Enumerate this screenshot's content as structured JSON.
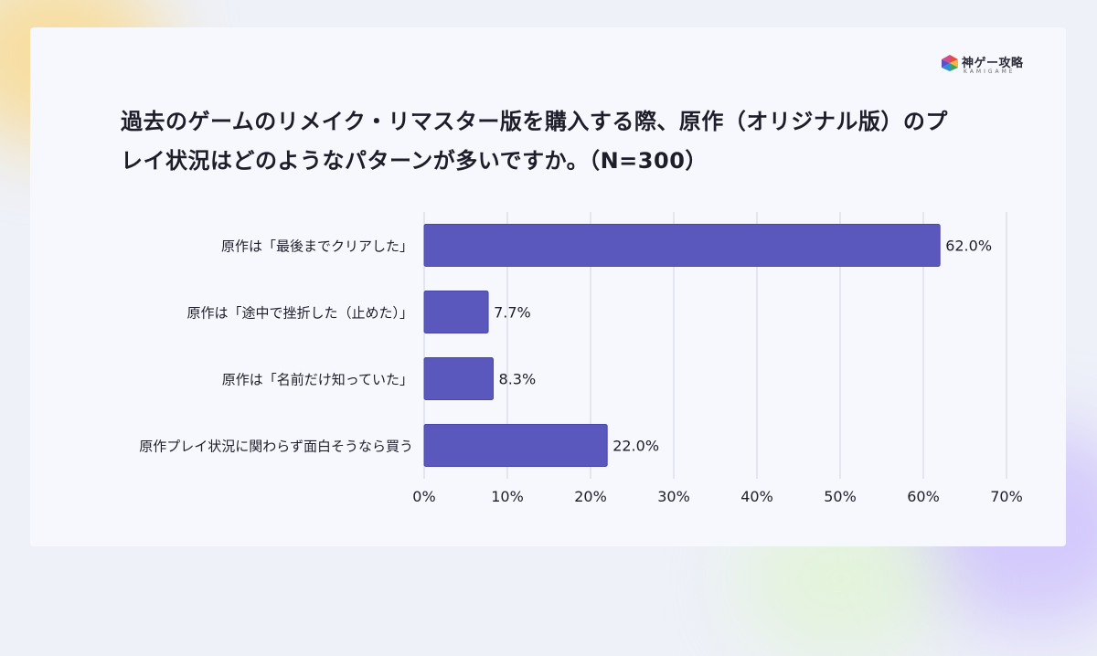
{
  "title": "過去のゲームのリメイク・リマスター版を購入する際、原作（オリジナル版）のプレイ状況はどのようなパターンが多いですか。（N=300）",
  "logo": {
    "name_jp": "神ゲー攻略",
    "name_en": "KAMIGAME"
  },
  "colors": {
    "bar": "#5a57bd",
    "bar_stroke": "#4a47a8",
    "grid": "#d0d3df",
    "text": "#1e1e2a"
  },
  "chart_data": {
    "type": "bar",
    "orientation": "horizontal",
    "categories": [
      "原作は「最後までクリアした」",
      "原作は「途中で挫折した（止めた）」",
      "原作は「名前だけ知っていた」",
      "原作プレイ状況に関わらず面白そうなら買う"
    ],
    "values": [
      62.0,
      7.7,
      8.3,
      22.0
    ],
    "value_labels": [
      "62.0%",
      "7.7%",
      "8.3%",
      "22.0%"
    ],
    "xlim": [
      0,
      70
    ],
    "xticks": [
      0,
      10,
      20,
      30,
      40,
      50,
      60,
      70
    ],
    "xtick_labels": [
      "0%",
      "10%",
      "20%",
      "30%",
      "40%",
      "50%",
      "60%",
      "70%"
    ],
    "grid": true
  }
}
